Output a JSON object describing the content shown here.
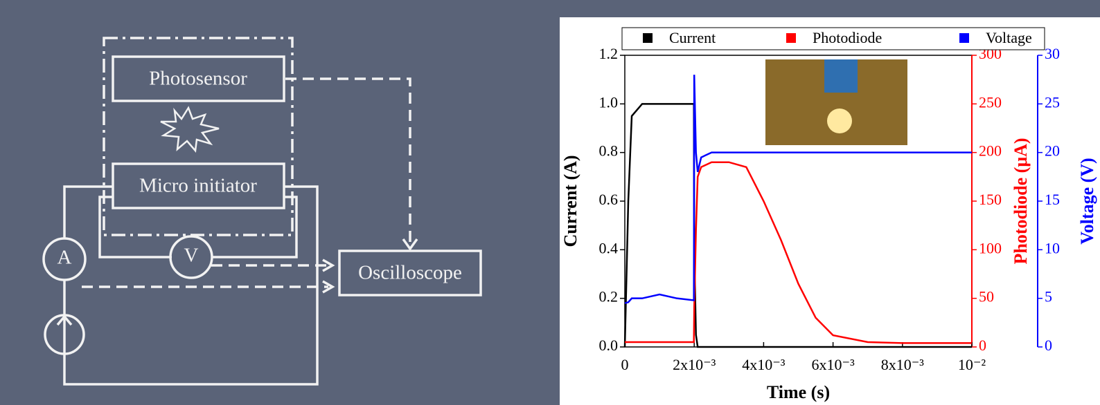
{
  "diagram": {
    "photosensor": "Photosensor",
    "initiator": "Micro initiator",
    "ammeter": "A",
    "voltmeter": "V",
    "oscilloscope": "Oscilloscope"
  },
  "chart_data": {
    "type": "line",
    "x_label": "Time (s)",
    "y_label": "Current (A)",
    "y2_label": "Photodiode (μA)",
    "y3_label": "Voltage (V)",
    "x": [
      0,
      0.0001,
      0.0002,
      0.0005,
      0.001,
      0.0015,
      0.00199,
      0.002,
      0.00205,
      0.0021,
      0.0022,
      0.0025,
      0.003,
      0.0035,
      0.004,
      0.0045,
      0.005,
      0.0055,
      0.006,
      0.007,
      0.008,
      0.009,
      0.01
    ],
    "series": [
      {
        "name": "Current",
        "color": "#000000",
        "values": [
          0,
          0.6,
          0.95,
          1.0,
          1.0,
          1.0,
          1.0,
          0.4,
          0.05,
          0,
          0,
          0,
          0,
          0,
          0,
          0,
          0,
          0,
          0,
          0,
          0,
          0,
          0
        ]
      },
      {
        "name": "Photodiode",
        "color": "#ff0000",
        "axis": "y2",
        "values": [
          5,
          5,
          5,
          5,
          5,
          5,
          5,
          40,
          120,
          175,
          185,
          190,
          190,
          185,
          150,
          110,
          65,
          30,
          12,
          5,
          4,
          4,
          4
        ]
      },
      {
        "name": "Voltage",
        "color": "#0000ff",
        "axis": "y3",
        "values": [
          4.5,
          4.6,
          5,
          5,
          5.4,
          5,
          4.8,
          28,
          20,
          18,
          19.5,
          20,
          20,
          20,
          20,
          20,
          20,
          20,
          20,
          20,
          20,
          20,
          20
        ]
      }
    ],
    "xlim": [
      0,
      0.01
    ],
    "xticks": [
      0,
      {
        "value": 0.002,
        "label": "2x10⁻³"
      },
      {
        "value": 0.004,
        "label": "4x10⁻³"
      },
      {
        "value": 0.006,
        "label": "6x10⁻³"
      },
      {
        "value": 0.008,
        "label": "8x10⁻³"
      },
      {
        "value": 0.01,
        "label": "10⁻²"
      }
    ],
    "ylim": [
      0,
      1.2
    ],
    "yticks": [
      {
        "value": 0,
        "label": "0.0"
      },
      0.2,
      0.4,
      0.6,
      0.8,
      {
        "value": 1,
        "label": "1.0"
      },
      1.2
    ],
    "y2lim": [
      0,
      300
    ],
    "y2ticks": [
      0,
      50,
      100,
      150,
      200,
      250,
      300
    ],
    "y3lim": [
      0,
      30
    ],
    "y3ticks": [
      0,
      5,
      10,
      15,
      20,
      25,
      30
    ],
    "legend": "top"
  }
}
